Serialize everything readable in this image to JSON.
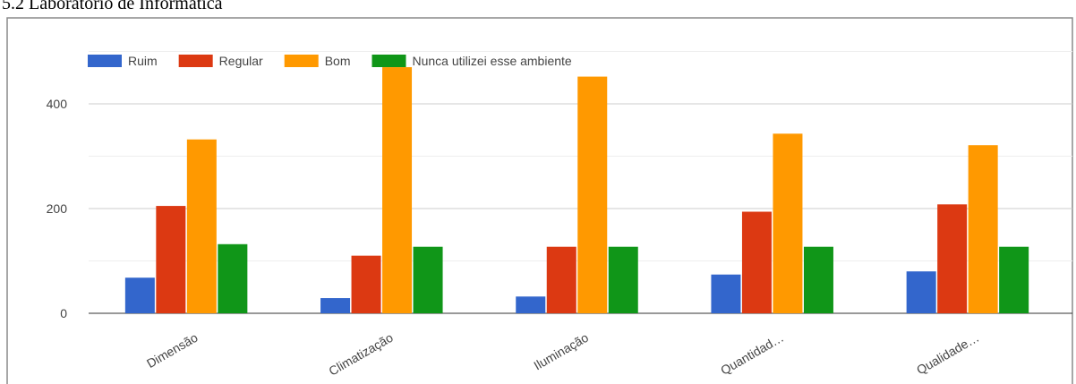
{
  "chart_data": {
    "type": "bar",
    "title": "5.2 Laboratório de Informática",
    "categories": [
      "Dimensão",
      "Climatização",
      "Iluminação",
      "Quantidad…",
      "Qualidade…"
    ],
    "series": [
      {
        "name": "Ruim",
        "color": "#3366cc",
        "values": [
          68,
          29,
          32,
          74,
          80
        ]
      },
      {
        "name": "Regular",
        "color": "#dc3912",
        "values": [
          205,
          110,
          127,
          194,
          208
        ]
      },
      {
        "name": "Bom",
        "color": "#ff9900",
        "values": [
          332,
          470,
          452,
          343,
          321
        ]
      },
      {
        "name": "Nunca utilizei esse ambiente",
        "color": "#109618",
        "values": [
          132,
          127,
          127,
          127,
          127
        ]
      }
    ],
    "ylim": [
      0,
      500
    ],
    "yticks": [
      0,
      200,
      400
    ],
    "minor_yticks": [
      100,
      300,
      500
    ],
    "grid": true,
    "legend": "top"
  }
}
